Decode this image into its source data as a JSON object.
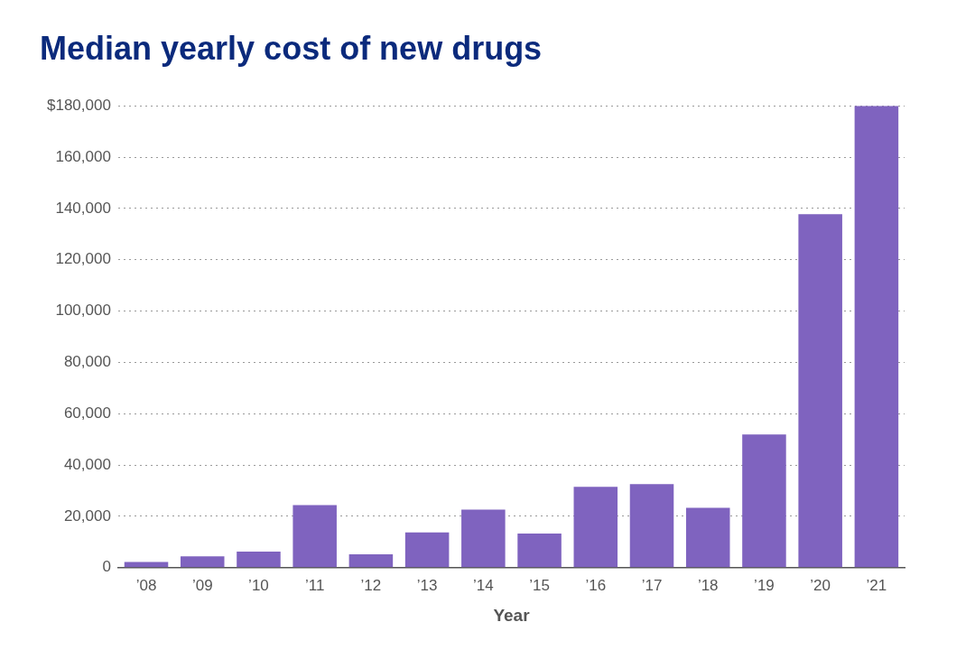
{
  "chart_data": {
    "type": "bar",
    "title": "Median yearly cost of new drugs",
    "xlabel": "Year",
    "categories": [
      "’08",
      "’09",
      "’10",
      "’11",
      "’12",
      "’13",
      "’14",
      "’15",
      "’16",
      "’17",
      "’18",
      "’19",
      "’20",
      "’21"
    ],
    "values": [
      2200,
      4400,
      6300,
      24400,
      5200,
      13700,
      22600,
      13300,
      31500,
      32600,
      23300,
      51900,
      137800,
      180000
    ],
    "color": "#7f63bf",
    "ylim": [
      0,
      180000
    ],
    "yticks": [
      0,
      {
        "value": 20000,
        "label": "20,000"
      },
      {
        "value": 40000,
        "label": "40,000"
      },
      {
        "value": 60000,
        "label": "60,000"
      },
      {
        "value": 80000,
        "label": "80,000"
      },
      {
        "value": 100000,
        "label": "100,000"
      },
      {
        "value": 120000,
        "label": "120,000"
      },
      {
        "value": 140000,
        "label": "140,000"
      },
      {
        "value": 160000,
        "label": "160,000"
      },
      {
        "value": 180000,
        "label": "$180,000"
      }
    ],
    "grid": true
  }
}
